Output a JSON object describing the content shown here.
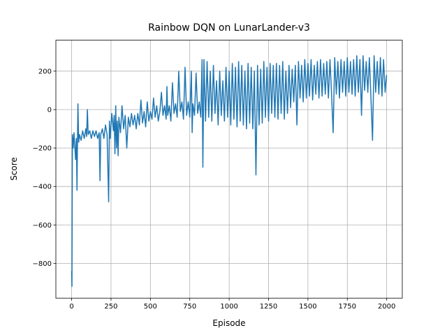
{
  "chart_data": {
    "type": "line",
    "title": "Rainbow DQN on LunarLander-v3",
    "xlabel": "Episode",
    "ylabel": "Score",
    "color": "#1f77b4",
    "grid": true,
    "xlim": [
      -100,
      2099
    ],
    "ylim": [
      -981,
      361
    ],
    "xticks": [
      0,
      250,
      500,
      750,
      1000,
      1250,
      1500,
      1750,
      2000
    ],
    "yticks": [
      {
        "value": -800,
        "label": "−800"
      },
      {
        "value": -600,
        "label": "−600"
      },
      {
        "value": -400,
        "label": "−400"
      },
      {
        "value": -200,
        "label": "−200"
      },
      0,
      200
    ],
    "x": [
      0,
      2,
      5,
      10,
      15,
      20,
      25,
      30,
      34,
      37,
      40,
      45,
      50,
      60,
      70,
      80,
      90,
      95,
      100,
      105,
      115,
      125,
      135,
      145,
      155,
      165,
      175,
      180,
      185,
      195,
      205,
      215,
      225,
      235,
      240,
      245,
      255,
      265,
      270,
      275,
      280,
      285,
      290,
      295,
      300,
      310,
      320,
      330,
      340,
      350,
      360,
      370,
      380,
      390,
      400,
      410,
      420,
      430,
      440,
      450,
      460,
      470,
      480,
      490,
      500,
      510,
      520,
      530,
      540,
      550,
      560,
      570,
      580,
      590,
      600,
      605,
      610,
      620,
      630,
      640,
      650,
      660,
      670,
      680,
      690,
      700,
      710,
      720,
      730,
      740,
      750,
      760,
      765,
      770,
      780,
      790,
      800,
      810,
      820,
      828,
      833,
      840,
      850,
      860,
      870,
      880,
      890,
      900,
      910,
      920,
      930,
      940,
      950,
      960,
      970,
      980,
      990,
      1000,
      1010,
      1020,
      1030,
      1040,
      1050,
      1060,
      1070,
      1080,
      1090,
      1100,
      1110,
      1120,
      1130,
      1140,
      1150,
      1160,
      1170,
      1180,
      1190,
      1200,
      1210,
      1220,
      1230,
      1240,
      1250,
      1260,
      1270,
      1280,
      1290,
      1300,
      1310,
      1320,
      1330,
      1340,
      1350,
      1360,
      1370,
      1380,
      1390,
      1400,
      1410,
      1420,
      1430,
      1440,
      1450,
      1460,
      1470,
      1480,
      1490,
      1500,
      1510,
      1520,
      1530,
      1540,
      1550,
      1560,
      1570,
      1580,
      1590,
      1600,
      1610,
      1620,
      1630,
      1640,
      1650,
      1660,
      1670,
      1680,
      1690,
      1700,
      1710,
      1720,
      1730,
      1740,
      1750,
      1760,
      1770,
      1780,
      1790,
      1800,
      1810,
      1820,
      1830,
      1840,
      1850,
      1860,
      1870,
      1880,
      1890,
      1900,
      1910,
      1920,
      1930,
      1940,
      1950,
      1960,
      1970,
      1980,
      1990,
      1999
    ],
    "values": [
      -840,
      -920,
      -130,
      -200,
      -120,
      -190,
      -260,
      -150,
      -420,
      -170,
      30,
      -170,
      -130,
      -160,
      -110,
      -150,
      -100,
      -140,
      0,
      -130,
      -110,
      -150,
      -110,
      -140,
      -110,
      -150,
      -120,
      -370,
      -130,
      -100,
      -150,
      -80,
      -130,
      -480,
      -60,
      -150,
      -20,
      -110,
      -30,
      -230,
      20,
      -200,
      -60,
      -240,
      -40,
      -120,
      20,
      -100,
      -30,
      -200,
      -40,
      -90,
      -20,
      -80,
      -30,
      -100,
      -20,
      -80,
      50,
      -70,
      -10,
      -90,
      40,
      -60,
      -10,
      -50,
      60,
      -40,
      20,
      -60,
      -10,
      90,
      -30,
      20,
      -50,
      120,
      -30,
      20,
      -60,
      140,
      -20,
      30,
      -40,
      200,
      -10,
      40,
      -50,
      220,
      -30,
      40,
      -40,
      200,
      -120,
      30,
      -30,
      190,
      -20,
      40,
      -40,
      260,
      -300,
      260,
      -60,
      250,
      -40,
      200,
      -60,
      230,
      -20,
      150,
      -80,
      200,
      -30,
      150,
      -60,
      220,
      -40,
      200,
      -80,
      240,
      -50,
      220,
      -90,
      250,
      -60,
      230,
      -80,
      200,
      -100,
      240,
      -70,
      220,
      -100,
      200,
      -340,
      230,
      -80,
      210,
      -70,
      250,
      -40,
      220,
      -60,
      240,
      -20,
      230,
      -40,
      240,
      -50,
      230,
      -20,
      250,
      -50,
      200,
      -20,
      230,
      10,
      210,
      40,
      230,
      -80,
      250,
      60,
      230,
      40,
      260,
      60,
      240,
      70,
      260,
      50,
      230,
      80,
      250,
      60,
      260,
      70,
      240,
      80,
      250,
      60,
      260,
      80,
      -120,
      270,
      80,
      250,
      60,
      260,
      90,
      250,
      70,
      270,
      90,
      250,
      80,
      260,
      70,
      280,
      90,
      260,
      -30,
      280,
      100,
      250,
      90,
      270,
      60,
      -160,
      280,
      90,
      250,
      80,
      270,
      70,
      260,
      90,
      180
    ]
  }
}
